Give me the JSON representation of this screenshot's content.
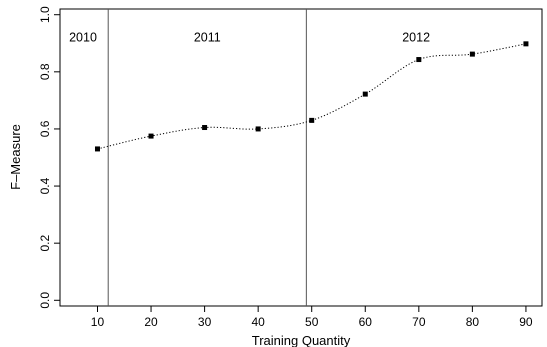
{
  "chart_data": {
    "type": "line",
    "title": "",
    "xlabel": "Training Quantity",
    "ylabel": "F–Measure",
    "x": [
      10,
      20,
      30,
      40,
      50,
      60,
      70,
      80,
      90
    ],
    "series": [
      {
        "values": [
          0.53,
          0.575,
          0.605,
          0.6,
          0.63,
          0.722,
          0.843,
          0.862,
          0.898
        ]
      }
    ],
    "xlim": [
      3,
      93
    ],
    "ylim": [
      -0.02,
      1.02
    ],
    "xticks": [
      10,
      20,
      30,
      40,
      50,
      60,
      70,
      80,
      90
    ],
    "yticks": [
      0.0,
      0.2,
      0.4,
      0.6,
      0.8,
      1.0
    ],
    "xtick_labels": [
      "10",
      "20",
      "30",
      "40",
      "50",
      "60",
      "70",
      "80",
      "90"
    ],
    "ytick_labels": [
      "0.0",
      "0.2",
      "0.4",
      "0.6",
      "0.8",
      "1.0"
    ],
    "vlines": [
      12,
      49
    ],
    "regions": [
      {
        "label": "2010",
        "x": 7.3,
        "y": 0.92
      },
      {
        "label": "2011",
        "x": 30.5,
        "y": 0.92
      },
      {
        "label": "2012",
        "x": 69.5,
        "y": 0.92
      }
    ],
    "line_style": "dotted",
    "marker": "square",
    "grid": false,
    "legend": "none",
    "colors": {
      "line": "#000000",
      "marker": "#000000",
      "vline": "#555555"
    }
  }
}
